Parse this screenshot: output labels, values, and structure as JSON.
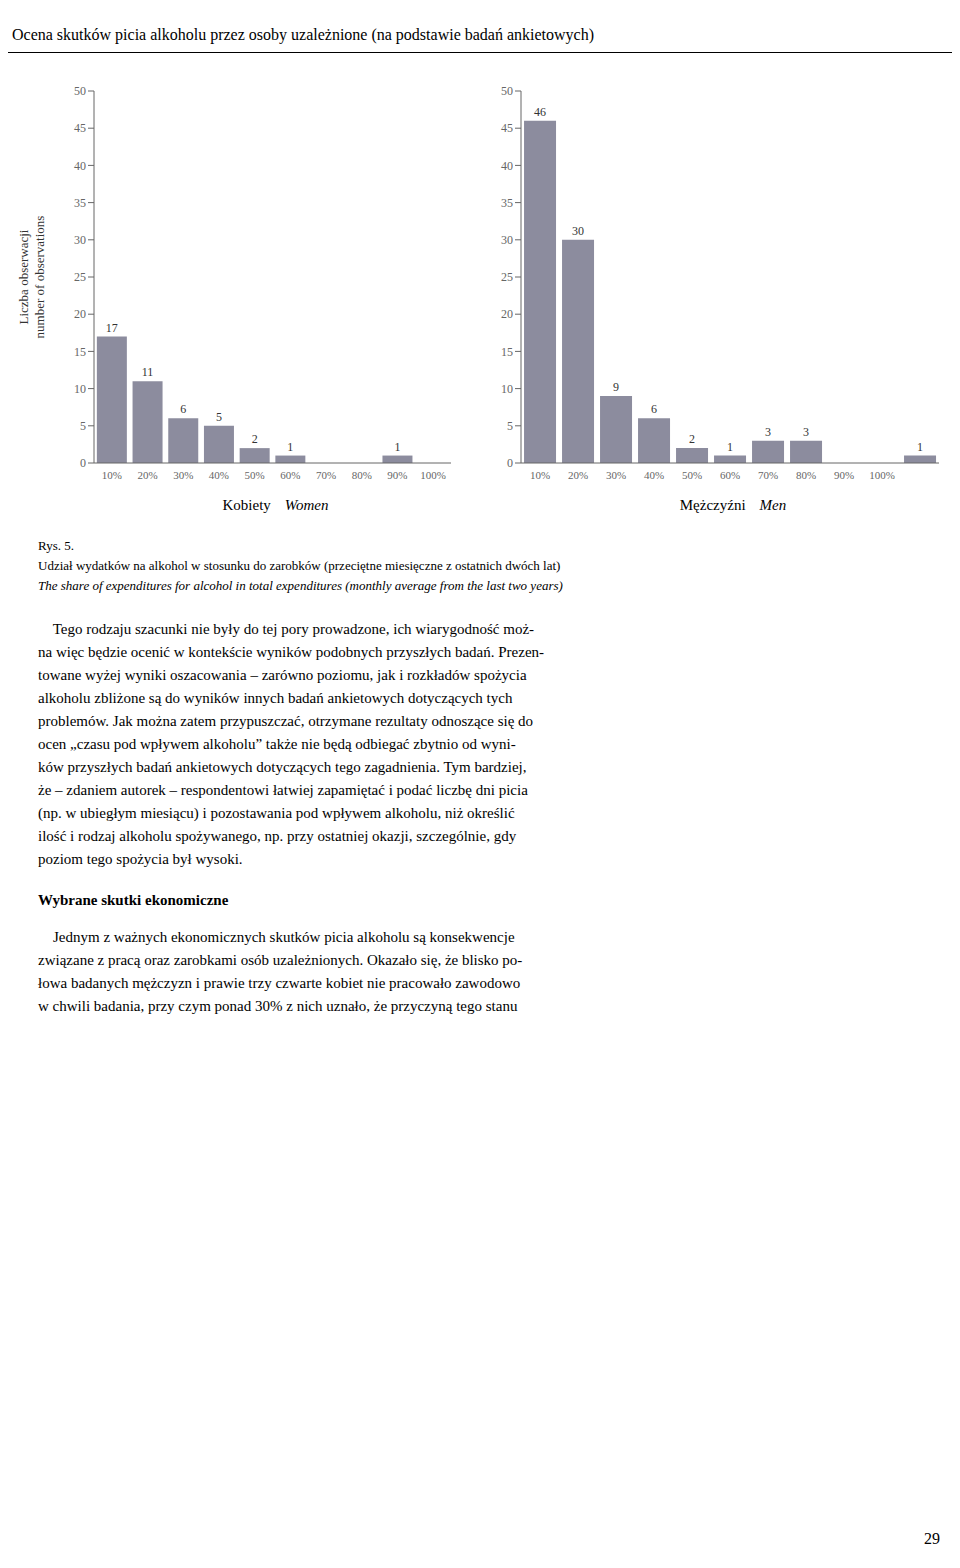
{
  "title": "Ocena skutków picia alkoholu przez osoby uzależnione (na podstawie badań ankietowych)",
  "chart_data": [
    {
      "type": "bar",
      "categories": [
        "10%",
        "20%",
        "30%",
        "40%",
        "50%",
        "60%",
        "70%",
        "80%",
        "90%",
        "100%"
      ],
      "values": [
        17,
        11,
        6,
        5,
        2,
        1,
        0,
        0,
        1,
        0
      ],
      "color": "#8c8c9e",
      "ylim": [
        0,
        50
      ],
      "yticks": [
        0,
        5,
        10,
        15,
        20,
        25,
        30,
        35,
        40,
        45,
        50
      ],
      "ylabel": [
        "Liczba obserwacji",
        " number of observations"
      ],
      "xlabel": [
        "Kobiety",
        "Women"
      ],
      "data_labels": true
    },
    {
      "type": "bar",
      "categories": [
        "10%",
        "20%",
        "30%",
        "40%",
        "50%",
        "60%",
        "70%",
        "80%",
        "90%",
        "100%",
        null
      ],
      "values": [
        46,
        30,
        9,
        6,
        2,
        1,
        3,
        3,
        0,
        0,
        1
      ],
      "color": "#8c8c9e",
      "ylim": [
        0,
        50
      ],
      "yticks": [
        0,
        5,
        10,
        15,
        20,
        25,
        30,
        35,
        40,
        45,
        50
      ],
      "xlabel": [
        "Mężczyźni",
        "Men"
      ],
      "data_labels": true
    }
  ],
  "annotations": [
    [
      "Rys. 5.",
      "Udział wydatków na alkohol w stosunku do zarobków (przeciętne miesięczne z ostatnich dwóch lat)",
      "The share of expenditures for alcohol in total expenditures (monthly average from the last two years)"
    ],
    [
      "    Tego rodzaju szacunki nie były do tej pory prowadzone, ich wiarygodność moż-",
      "na więc będzie ocenić w kontekście wyników podobnych przyszłych badań. Prezen-",
      "towane wyżej wyniki oszacowania – zarówno poziomu, jak i rozkładów spożycia",
      "alkoholu zbliżone są do wyników innych badań ankietowych dotyczących tych",
      "problemów. Jak można zatem przypuszczać, otrzymane rezultaty odnoszące się do",
      "ocen „czasu pod wpływem alkoholu” także nie będą odbiegać zbytnio od wyni-",
      "ków przyszłych badań ankietowych dotyczących tego zagadnienia. Tym bardziej,",
      "że – zdaniem autorek – respondentowi łatwiej zapamiętać i podać liczbę dni picia",
      "(np. w ubiegłym miesiącu) i pozostawania pod wpływem alkoholu, niż określić",
      "ilość i rodzaj alkoholu spożywanego, np. przy ostatniej okazji, szczególnie, gdy",
      "poziom tego spożycia był wysoki."
    ],
    [
      "Wybrane skutki ekonomiczne"
    ],
    [
      "    Jednym z ważnych ekonomicznych skutków picia alkoholu są konsekwencje",
      "związane z pracą oraz zarobkami osób uzależnionych. Okazało się, że blisko po-",
      "łowa badanych mężczyzn i prawie trzy czwarte kobiet nie pracowało zawodowo",
      "w chwili badania, przy czym ponad 30% z nich uznało, że przyczyną tego stanu"
    ],
    [
      "29"
    ]
  ]
}
